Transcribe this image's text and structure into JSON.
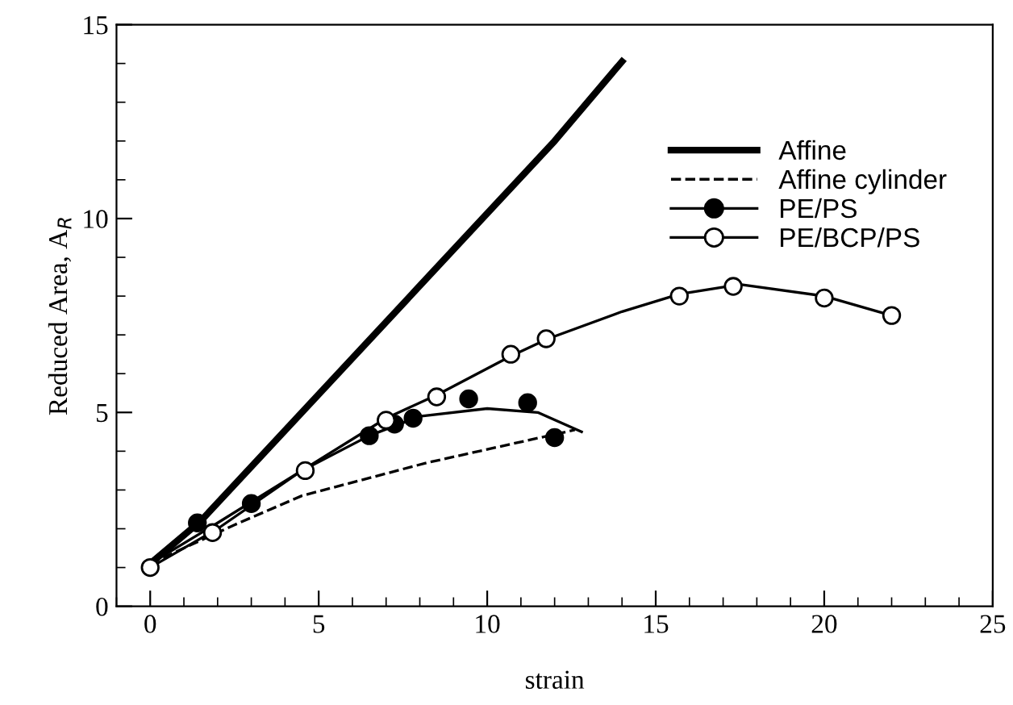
{
  "chart_data": {
    "type": "line",
    "xlabel": "strain",
    "ylabel": "Reduced Area, A$_{R}$",
    "xlim": [
      -1,
      25
    ],
    "ylim": [
      0,
      15
    ],
    "xticks": [
      0,
      5,
      10,
      15,
      20,
      25
    ],
    "yticks": [
      0,
      5,
      10,
      15
    ],
    "grid": false,
    "legend": "top right",
    "series": [
      {
        "name": "Affine",
        "color": "#000000",
        "line_style": "solid",
        "marker": "none",
        "x": [
          0,
          1.5,
          12,
          14
        ],
        "values": [
          1.1,
          2.2,
          12.0,
          14.05
        ]
      },
      {
        "name": "Affine cylinder",
        "color": "#000000",
        "line_style": "dashed",
        "marker": "none",
        "x": [
          0,
          2.5,
          4.5,
          8.2,
          12.6
        ],
        "values": [
          1.1,
          2.1,
          2.85,
          3.7,
          4.55
        ]
      },
      {
        "name": "PE/PS",
        "type": "scatter",
        "color": "#000000",
        "marker": "circle",
        "x": [
          1.4,
          3.0,
          6.5,
          7.25,
          7.8,
          9.45,
          11.2,
          12.0
        ],
        "values": [
          2.15,
          2.65,
          4.4,
          4.7,
          4.85,
          5.35,
          5.25,
          4.35
        ]
      },
      {
        "color": "#000000",
        "line_style": "solid",
        "marker": "none",
        "x": [
          0,
          2,
          4.5,
          6.5,
          8,
          10,
          11.5,
          12.8
        ],
        "values": [
          1.1,
          2.15,
          3.5,
          4.4,
          4.9,
          5.1,
          5.0,
          4.5
        ]
      },
      {
        "name": "PE/BCP/PS",
        "type": "scatter",
        "color": "#ffffff",
        "marker": "circle",
        "x": [
          0,
          1.85,
          4.6,
          7.0,
          8.5,
          10.7,
          11.75,
          15.7,
          17.3,
          20.0,
          22.0
        ],
        "values": [
          1.0,
          1.9,
          3.5,
          4.8,
          5.4,
          6.5,
          6.9,
          8.0,
          8.25,
          7.95,
          7.5
        ]
      },
      {
        "color": "#000000",
        "line_style": "solid",
        "marker": "none",
        "x": [
          0,
          2,
          4.5,
          7,
          8.5,
          10.7,
          11.8,
          14,
          15.7,
          17.5,
          20,
          22
        ],
        "values": [
          1.0,
          2.0,
          3.5,
          4.85,
          5.45,
          6.45,
          6.9,
          7.6,
          8.05,
          8.3,
          8.0,
          7.5
        ]
      }
    ]
  }
}
